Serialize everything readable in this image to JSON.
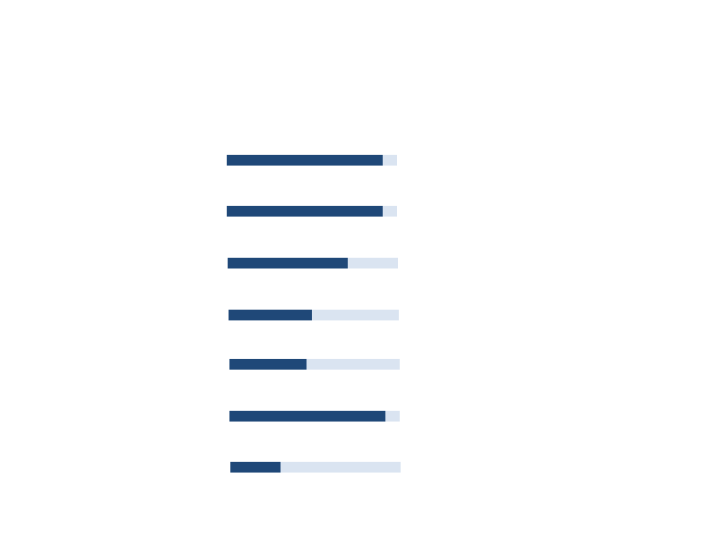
{
  "colors": {
    "fill": "#1f4878",
    "track": "#dae4f1",
    "background": "#ffffff"
  },
  "progress_bars": [
    {
      "value": 0.916
    },
    {
      "value": 0.916
    },
    {
      "value": 0.705
    },
    {
      "value": 0.489
    },
    {
      "value": 0.453
    },
    {
      "value": 0.916
    },
    {
      "value": 0.295
    }
  ]
}
